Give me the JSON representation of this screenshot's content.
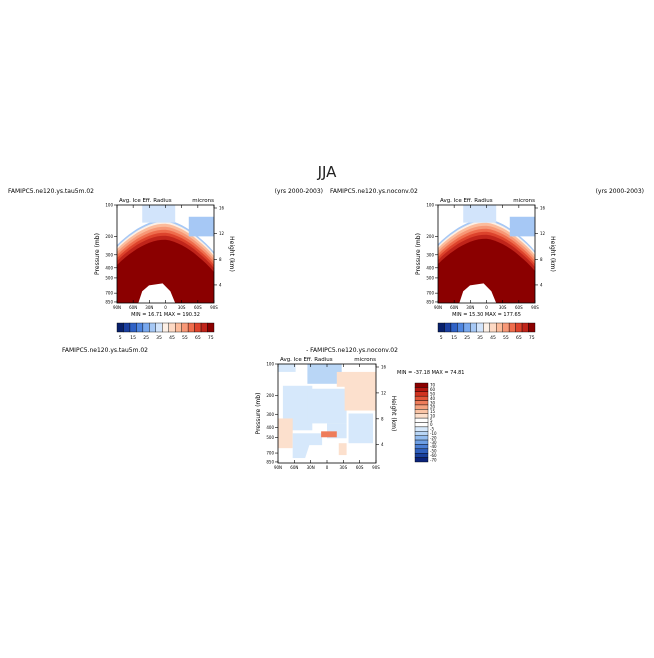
{
  "page_title": "JJA",
  "panels": [
    {
      "case": "FAMIPC5.ne120.ys.tau5m.02",
      "years": "(yrs 2000-2003)",
      "variable": "Avg. Ice Eff. Radius",
      "units": "microns",
      "ylabel": "Pressure (mb)",
      "ylabel_right": "Height (km)",
      "stats": "MIN =   16.71   MAX =  190.32"
    },
    {
      "case": "FAMIPC5.ne120.ys.noconv.02",
      "years": "(yrs 2000-2003)",
      "variable": "Avg. Ice Eff. Radius",
      "units": "microns",
      "ylabel": "Pressure (mb)",
      "ylabel_right": "Height (km)",
      "stats": "MIN =   15.30   MAX =  177.65"
    },
    {
      "case": "FAMIPC5.ne120.ys.tau5m.02",
      "title": "- FAMIPC5.ne120.ys.noconv.02",
      "variable": "Avg. Ice Eff. Radius",
      "units": "microns",
      "ylabel": "Pressure (mb)",
      "ylabel_right": "Height (km)",
      "stats": "MIN =  -37.18   MAX =   74.81"
    }
  ],
  "chart_data": [
    {
      "type": "heatmap",
      "title": "Avg. Ice Eff. Radius",
      "xlabel": "",
      "ylabel": "Pressure (mb)",
      "x_ticks": [
        "90N",
        "60N",
        "30N",
        "0",
        "30S",
        "60S",
        "90S"
      ],
      "y_ticks": [
        100,
        200,
        300,
        400,
        500,
        700,
        850
      ],
      "y_right_ticks": [
        16,
        12,
        8,
        4
      ],
      "colorbar_levels": [
        5,
        10,
        15,
        20,
        25,
        30,
        35,
        40,
        45,
        50,
        55,
        60,
        65,
        70,
        75
      ],
      "colorbar_labels": [
        "5",
        "15",
        "25",
        "35",
        "45",
        "55",
        "65",
        "75"
      ],
      "min": 16.71,
      "max": 190.32
    },
    {
      "type": "heatmap",
      "title": "Avg. Ice Eff. Radius",
      "xlabel": "",
      "ylabel": "Pressure (mb)",
      "x_ticks": [
        "90N",
        "60N",
        "30N",
        "0",
        "30S",
        "60S",
        "90S"
      ],
      "y_ticks": [
        100,
        200,
        300,
        400,
        500,
        700,
        850
      ],
      "y_right_ticks": [
        16,
        12,
        8,
        4
      ],
      "colorbar_levels": [
        5,
        10,
        15,
        20,
        25,
        30,
        35,
        40,
        45,
        50,
        55,
        60,
        65,
        70,
        75
      ],
      "colorbar_labels": [
        "5",
        "15",
        "25",
        "35",
        "45",
        "55",
        "65",
        "75"
      ],
      "min": 15.3,
      "max": 177.65
    },
    {
      "type": "heatmap",
      "title": "Avg. Ice Eff. Radius",
      "xlabel": "",
      "ylabel": "Pressure (mb)",
      "x_ticks": [
        "90N",
        "60N",
        "30N",
        "0",
        "30S",
        "60S",
        "90S"
      ],
      "y_ticks": [
        100,
        200,
        300,
        400,
        500,
        700,
        850
      ],
      "y_right_ticks": [
        16,
        12,
        8,
        4
      ],
      "colorbar_labels": [
        "70",
        "60",
        "50",
        "40",
        "30",
        "20",
        "15",
        "10",
        "5",
        "0",
        "-5",
        "-10",
        "-20",
        "-30",
        "-40",
        "-50",
        "-60",
        "-70"
      ],
      "min": -37.18,
      "max": 74.81
    }
  ],
  "colors": {
    "abs_scale": [
      "#08206b",
      "#1a3fa0",
      "#2f62c6",
      "#4f86e0",
      "#78a8ee",
      "#a6c8f5",
      "#d2e4fb",
      "#fdf0e6",
      "#fdd9c4",
      "#fcbc9c",
      "#f79877",
      "#ef6d4d",
      "#dd432c",
      "#c0241a",
      "#8b0000"
    ],
    "diff_scale": [
      "#8b0000",
      "#b3160f",
      "#d03320",
      "#e25538",
      "#ee7c5a",
      "#f5a27f",
      "#f9c4a6",
      "#fce0cd",
      "#ffffff",
      "#ffffff",
      "#d6e8fb",
      "#b9d6f6",
      "#93bcef",
      "#6e9fe4",
      "#4c7fd4",
      "#2f5fbd",
      "#1a409c",
      "#0b237a"
    ]
  }
}
